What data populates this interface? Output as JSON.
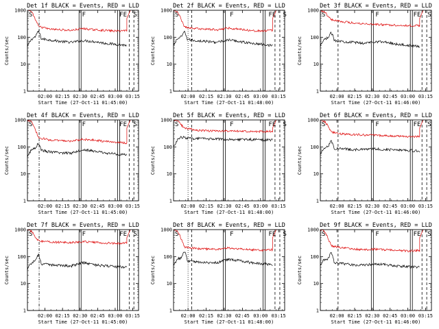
{
  "figure": {
    "ylabel": "Counts/sec",
    "colors": {
      "events": "#000000",
      "lld": "#dd0000",
      "axes": "#000000",
      "background": "#ffffff"
    },
    "y_ticks": [
      "1",
      "10",
      "100",
      "1000"
    ],
    "x_ticks": [
      "02:00",
      "02:15",
      "02:30",
      "02:45",
      "03:00",
      "03:15"
    ],
    "flag_labels": [
      "S",
      "F",
      "FE",
      "S"
    ]
  },
  "chart_data": [
    {
      "type": "line",
      "title": "Det 1f BLACK = Events, RED = LLD",
      "xlabel": "Start Time (27-Oct-11 01:45:00)",
      "start": "01:45",
      "ylim": [
        1,
        1000
      ],
      "yscale": "log",
      "x_range_min": [
        0,
        95
      ],
      "x_end_min": 85,
      "events_levels": [
        140,
        90,
        80,
        70,
        65,
        75,
        70,
        60,
        55,
        50
      ],
      "lld_levels": [
        900,
        250,
        200,
        190,
        180,
        210,
        190,
        180,
        170,
        180
      ],
      "events_peak": 170,
      "lld_start": 1000,
      "lld_final": 1000,
      "vlines": [
        {
          "type": "dashdot",
          "x": 10
        },
        {
          "type": "double",
          "x": 45
        },
        {
          "type": "double",
          "x": 78
        },
        {
          "type": "dashed",
          "x": 87
        },
        {
          "type": "dashed",
          "x": 91
        }
      ],
      "series": [
        {
          "name": "Events"
        },
        {
          "name": "LLD"
        }
      ]
    },
    {
      "type": "line",
      "title": "Det 2f BLACK = Events, RED = LLD",
      "xlabel": "Start Time (27-Oct-11 01:48:00)",
      "start": "01:48",
      "ylim": [
        1,
        1000
      ],
      "yscale": "log",
      "x_range_min": [
        0,
        92
      ],
      "x_end_min": 82,
      "events_levels": [
        150,
        85,
        75,
        70,
        65,
        80,
        70,
        60,
        55,
        50
      ],
      "lld_levels": [
        900,
        240,
        210,
        200,
        190,
        220,
        200,
        180,
        170,
        180
      ],
      "events_peak": 160,
      "lld_start": 1000,
      "lld_final": 1000,
      "vlines": [
        {
          "type": "dotted",
          "x": 12
        },
        {
          "type": "dashed",
          "x": 15
        },
        {
          "type": "double",
          "x": 42
        },
        {
          "type": "double",
          "x": 75
        },
        {
          "type": "dashed",
          "x": 84
        },
        {
          "type": "dashed",
          "x": 88
        }
      ],
      "series": [
        {
          "name": "Events"
        },
        {
          "name": "LLD"
        }
      ]
    },
    {
      "type": "line",
      "title": "Det 3f BLACK = Events, RED = LLD",
      "xlabel": "Start Time (27-Oct-11 01:46:00)",
      "start": "01:46",
      "ylim": [
        1,
        1000
      ],
      "yscale": "log",
      "x_range_min": [
        0,
        94
      ],
      "x_end_min": 84,
      "events_levels": [
        140,
        80,
        70,
        65,
        60,
        70,
        65,
        55,
        50,
        45
      ],
      "lld_levels": [
        900,
        450,
        380,
        340,
        320,
        300,
        290,
        280,
        270,
        270
      ],
      "events_peak": 150,
      "lld_start": 1000,
      "lld_final": 1000,
      "vlines": [
        {
          "type": "dashed",
          "x": 15
        },
        {
          "type": "double",
          "x": 44
        },
        {
          "type": "double",
          "x": 77
        },
        {
          "type": "dashed",
          "x": 86
        },
        {
          "type": "dashed",
          "x": 90
        }
      ],
      "series": [
        {
          "name": "Events"
        },
        {
          "name": "LLD"
        }
      ]
    },
    {
      "type": "line",
      "title": "Det 4f BLACK = Events, RED = LLD",
      "xlabel": "Start Time (27-Oct-11 01:45:00)",
      "start": "01:45",
      "ylim": [
        1,
        1000
      ],
      "yscale": "log",
      "x_range_min": [
        0,
        95
      ],
      "x_end_min": 85,
      "events_levels": [
        130,
        80,
        65,
        60,
        60,
        80,
        70,
        60,
        55,
        50
      ],
      "lld_levels": [
        900,
        220,
        180,
        170,
        165,
        190,
        180,
        160,
        150,
        140
      ],
      "events_peak": 140,
      "lld_start": 1000,
      "lld_final": 1000,
      "vlines": [
        {
          "type": "dashdot",
          "x": 10
        },
        {
          "type": "double",
          "x": 45
        },
        {
          "type": "double",
          "x": 78
        },
        {
          "type": "dashed",
          "x": 87
        },
        {
          "type": "dashed",
          "x": 91
        }
      ],
      "series": [
        {
          "name": "Events"
        },
        {
          "name": "LLD"
        }
      ]
    },
    {
      "type": "line",
      "title": "Det 5f BLACK = Events, RED = LLD",
      "xlabel": "Start Time (27-Oct-11 01:48:00)",
      "start": "01:48",
      "ylim": [
        1,
        1000
      ],
      "yscale": "log",
      "x_range_min": [
        0,
        92
      ],
      "x_end_min": 82,
      "events_levels": [
        300,
        210,
        205,
        200,
        195,
        195,
        190,
        190,
        185,
        180
      ],
      "lld_levels": [
        1000,
        500,
        420,
        400,
        390,
        385,
        380,
        380,
        375,
        380
      ],
      "events_peak": 230,
      "lld_start": 1000,
      "lld_final": 1000,
      "vlines": [
        {
          "type": "dotted",
          "x": 12
        },
        {
          "type": "dashed",
          "x": 15
        },
        {
          "type": "double",
          "x": 42
        },
        {
          "type": "double",
          "x": 75
        },
        {
          "type": "dashed",
          "x": 84
        },
        {
          "type": "dashed",
          "x": 88
        }
      ],
      "series": [
        {
          "name": "Events"
        },
        {
          "name": "LLD"
        }
      ]
    },
    {
      "type": "line",
      "title": "Det 6f BLACK = Events, RED = LLD",
      "xlabel": "Start Time (27-Oct-11 01:46:00)",
      "start": "01:46",
      "ylim": [
        1,
        1000
      ],
      "yscale": "log",
      "x_range_min": [
        0,
        94
      ],
      "x_end_min": 84,
      "events_levels": [
        160,
        90,
        85,
        80,
        80,
        85,
        80,
        80,
        75,
        70
      ],
      "lld_levels": [
        1000,
        350,
        300,
        290,
        280,
        270,
        260,
        250,
        240,
        250
      ],
      "events_peak": 170,
      "lld_start": 1000,
      "lld_final": 1000,
      "vlines": [
        {
          "type": "dashed",
          "x": 15
        },
        {
          "type": "double",
          "x": 44
        },
        {
          "type": "double",
          "x": 77
        },
        {
          "type": "dashed",
          "x": 86
        },
        {
          "type": "dashed",
          "x": 90
        }
      ],
      "series": [
        {
          "name": "Events"
        },
        {
          "name": "LLD"
        }
      ]
    },
    {
      "type": "line",
      "title": "Det 7f BLACK = Events, RED = LLD",
      "xlabel": "Start Time (27-Oct-11 01:45:00)",
      "start": "01:45",
      "ylim": [
        1,
        1000
      ],
      "yscale": "log",
      "x_range_min": [
        0,
        95
      ],
      "x_end_min": 85,
      "events_levels": [
        100,
        55,
        50,
        48,
        45,
        60,
        50,
        45,
        42,
        40
      ],
      "lld_levels": [
        900,
        380,
        350,
        340,
        330,
        360,
        340,
        320,
        310,
        330
      ],
      "events_peak": 120,
      "lld_start": 1000,
      "lld_final": 1000,
      "vlines": [
        {
          "type": "dashdot",
          "x": 10
        },
        {
          "type": "double",
          "x": 45
        },
        {
          "type": "double",
          "x": 78
        },
        {
          "type": "dashed",
          "x": 87
        },
        {
          "type": "dashed",
          "x": 91
        }
      ],
      "series": [
        {
          "name": "Events"
        },
        {
          "name": "LLD"
        }
      ]
    },
    {
      "type": "line",
      "title": "Det 8f BLACK = Events, RED = LLD",
      "xlabel": "Start Time (27-Oct-11 01:48:00)",
      "start": "01:48",
      "ylim": [
        1,
        1000
      ],
      "yscale": "log",
      "x_range_min": [
        0,
        92
      ],
      "x_end_min": 82,
      "events_levels": [
        140,
        70,
        65,
        60,
        60,
        80,
        70,
        60,
        55,
        50
      ],
      "lld_levels": [
        900,
        230,
        200,
        190,
        185,
        210,
        195,
        180,
        170,
        180
      ],
      "events_peak": 160,
      "lld_start": 1000,
      "lld_final": 1000,
      "vlines": [
        {
          "type": "dotted",
          "x": 12
        },
        {
          "type": "dashed",
          "x": 15
        },
        {
          "type": "double",
          "x": 42
        },
        {
          "type": "double",
          "x": 75
        },
        {
          "type": "dashed",
          "x": 84
        },
        {
          "type": "dashed",
          "x": 88
        }
      ],
      "series": [
        {
          "name": "Events"
        },
        {
          "name": "LLD"
        }
      ]
    },
    {
      "type": "line",
      "title": "Det 9f BLACK = Events, RED = LLD",
      "xlabel": "Start Time (27-Oct-11 01:46:00)",
      "start": "01:46",
      "ylim": [
        1,
        1000
      ],
      "yscale": "log",
      "x_range_min": [
        0,
        94
      ],
      "x_end_min": 84,
      "events_levels": [
        140,
        60,
        55,
        50,
        48,
        55,
        50,
        45,
        42,
        40
      ],
      "lld_levels": [
        900,
        250,
        210,
        190,
        180,
        190,
        180,
        170,
        160,
        170
      ],
      "events_peak": 150,
      "lld_start": 1000,
      "lld_final": 1000,
      "vlines": [
        {
          "type": "dashed",
          "x": 15
        },
        {
          "type": "double",
          "x": 44
        },
        {
          "type": "double",
          "x": 77
        },
        {
          "type": "dashed",
          "x": 86
        },
        {
          "type": "dashed",
          "x": 90
        }
      ],
      "series": [
        {
          "name": "Events"
        },
        {
          "name": "LLD"
        }
      ]
    }
  ]
}
